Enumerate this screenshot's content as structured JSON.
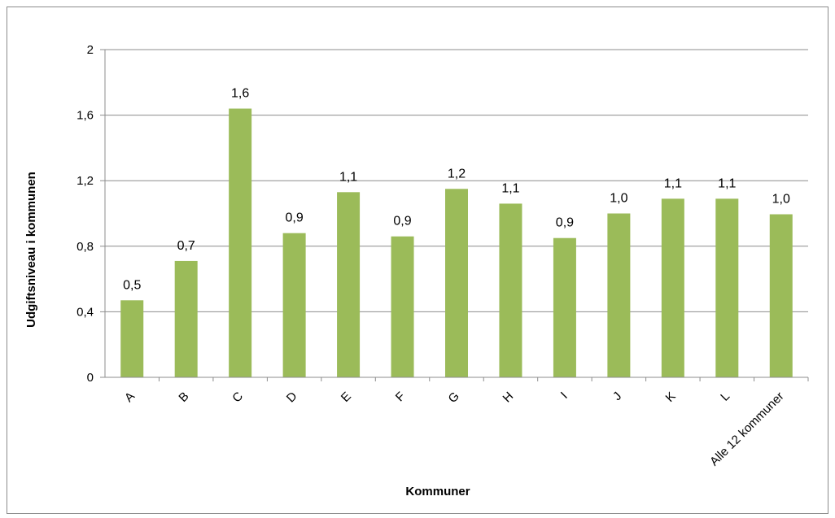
{
  "chart_data": {
    "type": "bar",
    "categories": [
      "A",
      "B",
      "C",
      "D",
      "E",
      "F",
      "G",
      "H",
      "I",
      "J",
      "K",
      "L",
      "Alle 12 kommuner"
    ],
    "values": [
      0.47,
      0.71,
      1.64,
      0.88,
      1.13,
      0.86,
      1.15,
      1.06,
      0.85,
      1.0,
      1.09,
      1.09,
      0.995
    ],
    "data_labels": [
      "0,5",
      "0,7",
      "1,6",
      "0,9",
      "1,1",
      "0,9",
      "1,2",
      "1,1",
      "0,9",
      "1,0",
      "1,1",
      "1,1",
      "1,0"
    ],
    "xlabel": "Kommuner",
    "ylabel": "Udgiftsniveau i kommunen",
    "ylim": [
      0,
      2
    ],
    "yticks": [
      0,
      0.4,
      0.8,
      1.2,
      1.6,
      2
    ],
    "ytick_labels": [
      "0",
      "0,4",
      "0,8",
      "1,2",
      "1,6",
      "2"
    ],
    "grid": true,
    "legend": "none",
    "bar_color": "#9bbb59"
  }
}
